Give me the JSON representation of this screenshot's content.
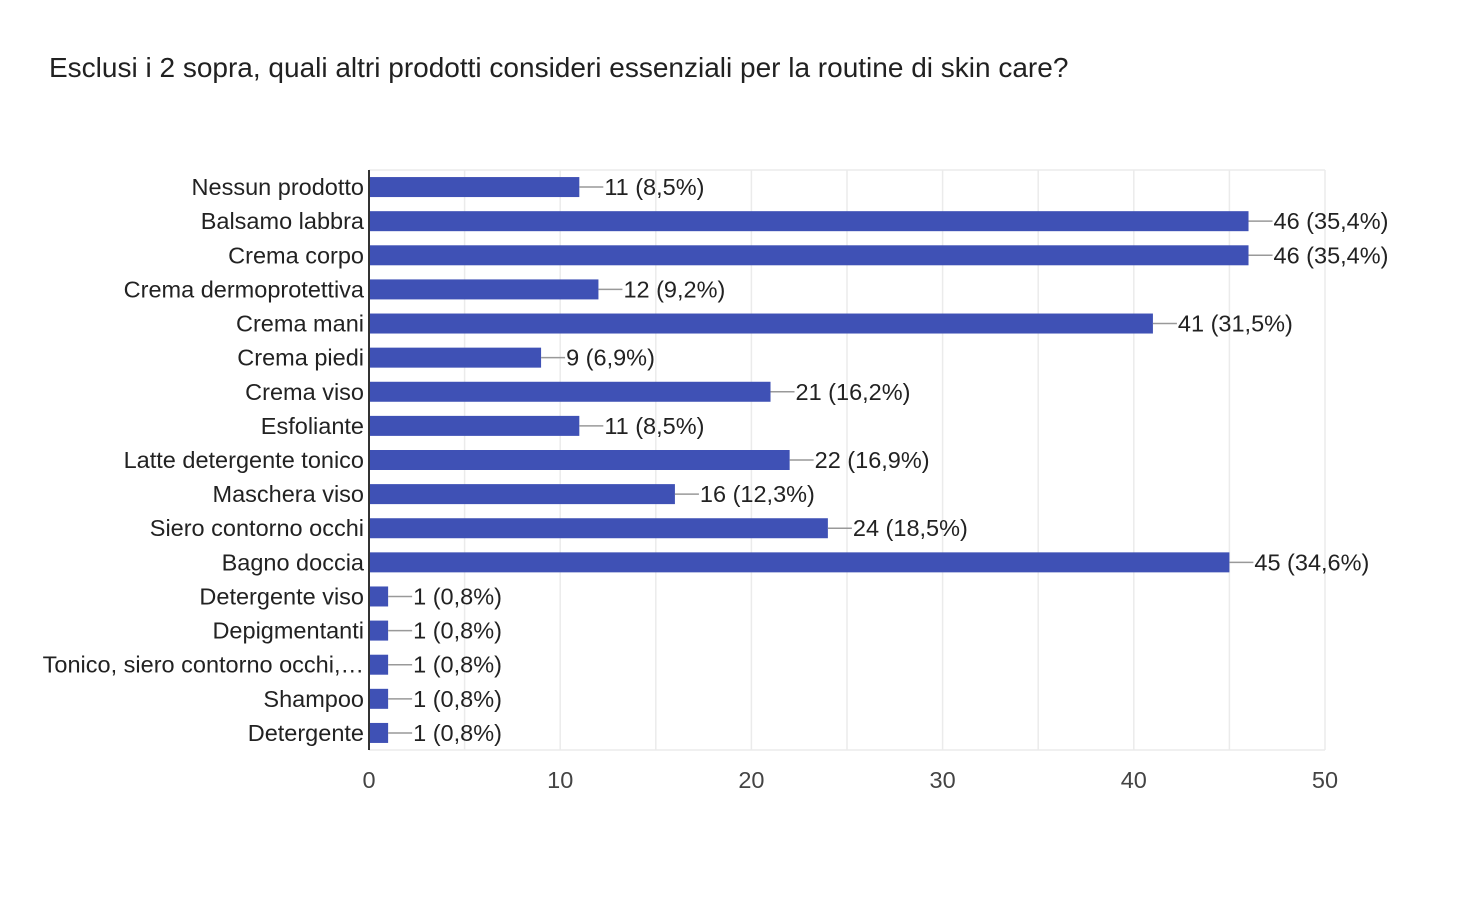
{
  "chart_data": {
    "type": "bar",
    "orientation": "horizontal",
    "title": "Esclusi i 2 sopra, quali altri prodotti consideri essenziali per la routine di skin care?",
    "categories": [
      "Nessun prodotto",
      "Balsamo labbra",
      "Crema corpo",
      "Crema dermoprotettiva",
      "Crema mani",
      "Crema piedi",
      "Crema viso",
      "Esfoliante",
      "Latte detergente tonico",
      "Maschera viso",
      "Siero contorno occhi",
      "Bagno doccia",
      "Detergente viso",
      "Depigmentanti",
      "Tonico, siero contorno occhi,…",
      "Shampoo",
      "Detergente"
    ],
    "values": [
      11,
      46,
      46,
      12,
      41,
      9,
      21,
      11,
      22,
      16,
      24,
      45,
      1,
      1,
      1,
      1,
      1
    ],
    "value_labels": [
      "11 (8,5%)",
      "46 (35,4%)",
      "46 (35,4%)",
      "12 (9,2%)",
      "41 (31,5%)",
      "9 (6,9%)",
      "21 (16,2%)",
      "11 (8,5%)",
      "22 (16,9%)",
      "16 (12,3%)",
      "24 (18,5%)",
      "45 (34,6%)",
      "1 (0,8%)",
      "1 (0,8%)",
      "1 (0,8%)",
      "1 (0,8%)",
      "1 (0,8%)"
    ],
    "xlim": [
      0,
      50
    ],
    "xticks": [
      0,
      10,
      20,
      30,
      40,
      50
    ],
    "xlabel": "",
    "ylabel": "",
    "grid": true,
    "legend": "none",
    "bar_color": "#3f51b5",
    "grid_color": "#ebebeb",
    "axis_color": "#333333",
    "leader_color": "#999999"
  }
}
